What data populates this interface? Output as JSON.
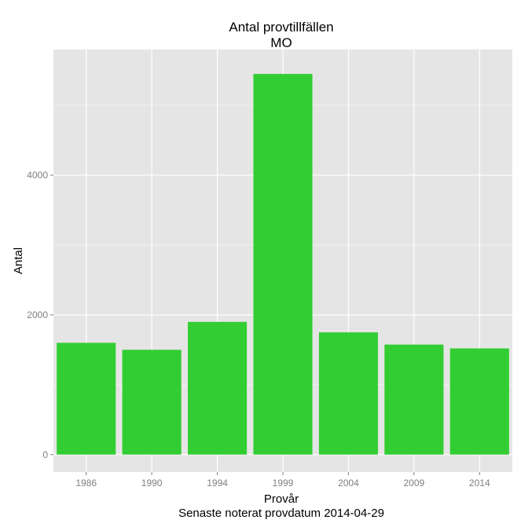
{
  "chart_data": {
    "type": "bar",
    "title": "Antal provtillfällen",
    "subtitle": "MO",
    "xlabel": "Provår",
    "ylabel": "Antal",
    "caption": "Senaste noterat provdatum 2014-04-29",
    "categories": [
      "1986",
      "1990",
      "1994",
      "1999",
      "2004",
      "2009",
      "2014"
    ],
    "values": [
      1600,
      1500,
      1900,
      5450,
      1750,
      1575,
      1520
    ],
    "ylim": [
      -250,
      5800
    ],
    "yticks": [
      0,
      2000,
      4000
    ],
    "grid": true,
    "legend": "none",
    "colors": {
      "bar": "#32cd32",
      "panel": "#e5e5e5",
      "grid_major": "#ffffff",
      "grid_minor": "#f2f2f2"
    }
  }
}
